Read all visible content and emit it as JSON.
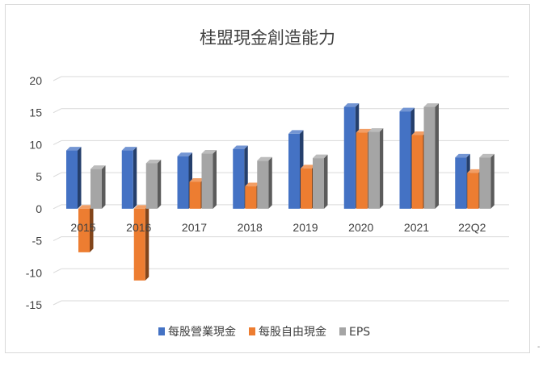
{
  "chart_data": {
    "type": "bar",
    "title": "桂盟現金創造能力",
    "categories": [
      "2015",
      "2016",
      "2017",
      "2018",
      "2019",
      "2020",
      "2021",
      "22Q2"
    ],
    "series": [
      {
        "name": "每股營業現金",
        "values": [
          9.1,
          9.1,
          8.2,
          9.3,
          11.7,
          15.9,
          15.2,
          8.0
        ],
        "color": "#4472c4"
      },
      {
        "name": "每股自由現金",
        "values": [
          -6.8,
          -11.2,
          4.2,
          3.5,
          6.3,
          11.9,
          11.5,
          5.6
        ],
        "color": "#ed7d31"
      },
      {
        "name": "EPS",
        "values": [
          6.2,
          7.1,
          8.6,
          7.5,
          7.9,
          12.0,
          15.9,
          8.0
        ],
        "color": "#a5a5a5"
      }
    ],
    "yticks": [
      "20",
      "15",
      "10",
      "5",
      "0",
      "-5",
      "-10",
      "-15"
    ],
    "ylim": [
      -15,
      20
    ],
    "grid": true,
    "legend_position": "bottom",
    "style": "3d-clustered-column"
  },
  "trailing_mark": "-"
}
